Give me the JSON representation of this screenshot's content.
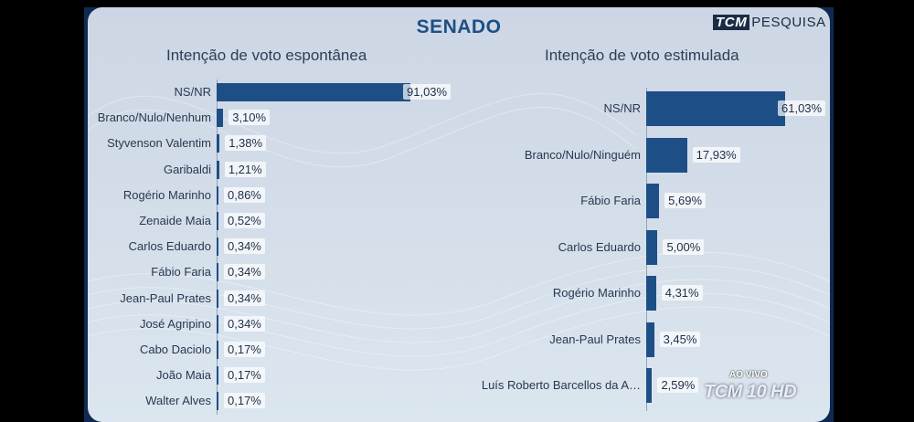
{
  "header": {
    "title": "SENADO",
    "logo_box": "TCM",
    "logo_text": "PESQUISA"
  },
  "overlay": {
    "live_label": "AO VIVO",
    "channel": "TCM 10 HD"
  },
  "colors": {
    "bar": "#1d4f86",
    "title": "#1d4f86"
  },
  "chart_data": [
    {
      "type": "bar",
      "orientation": "horizontal",
      "title": "Intenção de voto espontânea",
      "categories": [
        "NS/NR",
        "Branco/Nulo/Nenhum",
        "Styvenson Valentim",
        "Garibaldi",
        "Rogério Marinho",
        "Zenaide Maia",
        "Carlos Eduardo",
        "Fábio Faria",
        "Jean-Paul Prates",
        "José Agripino",
        "Cabo Daciolo",
        "João Maia",
        "Walter Alves"
      ],
      "values": [
        91.03,
        3.1,
        1.38,
        1.21,
        0.86,
        0.52,
        0.34,
        0.34,
        0.34,
        0.34,
        0.17,
        0.17,
        0.17
      ],
      "value_labels": [
        "91,03%",
        "3,10%",
        "1,38%",
        "1,21%",
        "0,86%",
        "0,52%",
        "0,34%",
        "0,34%",
        "0,34%",
        "0,34%",
        "0,17%",
        "0,17%",
        "0,17%"
      ],
      "unit": "%"
    },
    {
      "type": "bar",
      "orientation": "horizontal",
      "title": "Intenção de voto estimulada",
      "categories": [
        "NS/NR",
        "Branco/Nulo/Ninguém",
        "Fábio Faria",
        "Carlos Eduardo",
        "Rogério Marinho",
        "Jean-Paul Prates",
        "Luís Roberto Barcellos da A…"
      ],
      "values": [
        61.03,
        17.93,
        5.69,
        5.0,
        4.31,
        3.45,
        2.59
      ],
      "value_labels": [
        "61,03%",
        "17,93%",
        "5,69%",
        "5,00%",
        "4,31%",
        "3,45%",
        "2,59%"
      ],
      "unit": "%"
    }
  ]
}
